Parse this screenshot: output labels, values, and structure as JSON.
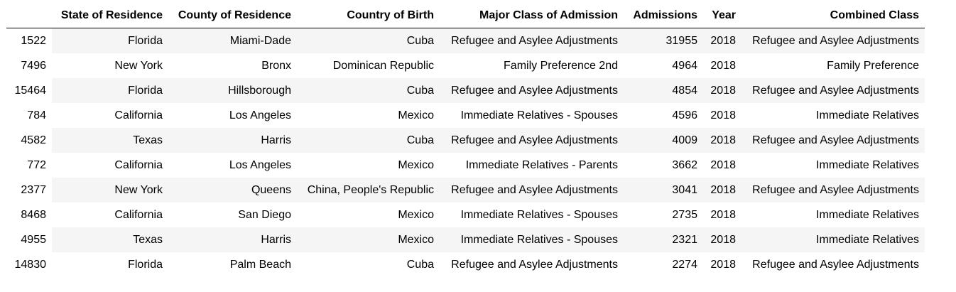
{
  "table": {
    "columns": [
      "",
      "State of Residence",
      "County of Residence",
      "Country of Birth",
      "Major Class of Admission",
      "Admissions",
      "Year",
      "Combined Class"
    ],
    "rows": [
      [
        "1522",
        "Florida",
        "Miami-Dade",
        "Cuba",
        "Refugee and Asylee Adjustments",
        "31955",
        "2018",
        "Refugee and Asylee Adjustments"
      ],
      [
        "7496",
        "New York",
        "Bronx",
        "Dominican Republic",
        "Family Preference 2nd",
        "4964",
        "2018",
        "Family Preference"
      ],
      [
        "15464",
        "Florida",
        "Hillsborough",
        "Cuba",
        "Refugee and Asylee Adjustments",
        "4854",
        "2018",
        "Refugee and Asylee Adjustments"
      ],
      [
        "784",
        "California",
        "Los Angeles",
        "Mexico",
        "Immediate Relatives - Spouses",
        "4596",
        "2018",
        "Immediate Relatives"
      ],
      [
        "4582",
        "Texas",
        "Harris",
        "Cuba",
        "Refugee and Asylee Adjustments",
        "4009",
        "2018",
        "Refugee and Asylee Adjustments"
      ],
      [
        "772",
        "California",
        "Los Angeles",
        "Mexico",
        "Immediate Relatives - Parents",
        "3662",
        "2018",
        "Immediate Relatives"
      ],
      [
        "2377",
        "New York",
        "Queens",
        "China, People's Republic",
        "Refugee and Asylee Adjustments",
        "3041",
        "2018",
        "Refugee and Asylee Adjustments"
      ],
      [
        "8468",
        "California",
        "San Diego",
        "Mexico",
        "Immediate Relatives - Spouses",
        "2735",
        "2018",
        "Immediate Relatives"
      ],
      [
        "4955",
        "Texas",
        "Harris",
        "Mexico",
        "Immediate Relatives - Spouses",
        "2321",
        "2018",
        "Immediate Relatives"
      ],
      [
        "14830",
        "Florida",
        "Palm Beach",
        "Cuba",
        "Refugee and Asylee Adjustments",
        "2274",
        "2018",
        "Refugee and Asylee Adjustments"
      ]
    ]
  }
}
